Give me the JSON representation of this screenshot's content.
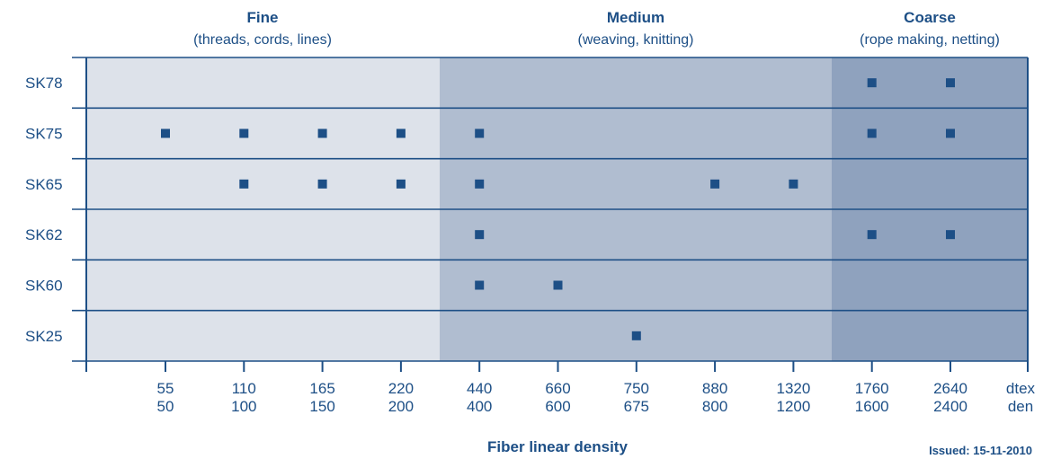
{
  "chart_data": {
    "type": "scatter",
    "xlabel": "Fiber linear density",
    "note": "Issued: 15-11-2010",
    "bands": [
      {
        "title": "Fine",
        "subtitle": "(threads, cords, lines)",
        "color": "#dde2ea",
        "range": [
          0,
          4.5
        ]
      },
      {
        "title": "Medium",
        "subtitle": "(weaving, knitting)",
        "color": "#b0bdd0",
        "range": [
          4.5,
          9.5
        ]
      },
      {
        "title": "Coarse",
        "subtitle": "(rope making, netting)",
        "color": "#8fa2be",
        "range": [
          9.5,
          12.5
        ]
      }
    ],
    "rows": [
      "SK78",
      "SK75",
      "SK65",
      "SK62",
      "SK60",
      "SK25"
    ],
    "x_ticks": [
      {
        "dtex": "55",
        "den": "50"
      },
      {
        "dtex": "110",
        "den": "100"
      },
      {
        "dtex": "165",
        "den": "150"
      },
      {
        "dtex": "220",
        "den": "200"
      },
      {
        "dtex": "440",
        "den": "400"
      },
      {
        "dtex": "660",
        "den": "600"
      },
      {
        "dtex": "750",
        "den": "675"
      },
      {
        "dtex": "880",
        "den": "800"
      },
      {
        "dtex": "1320",
        "den": "1200"
      },
      {
        "dtex": "1760",
        "den": "1600"
      },
      {
        "dtex": "2640",
        "den": "2400"
      }
    ],
    "unit_labels": {
      "dtex": "dtex",
      "den": "den"
    },
    "points": [
      {
        "row": "SK78",
        "dtex": [
          1760,
          2640
        ]
      },
      {
        "row": "SK75",
        "dtex": [
          55,
          110,
          165,
          220,
          440,
          1760,
          2640
        ]
      },
      {
        "row": "SK65",
        "dtex": [
          110,
          165,
          220,
          440,
          880,
          1320
        ]
      },
      {
        "row": "SK62",
        "dtex": [
          440,
          1760,
          2640
        ]
      },
      {
        "row": "SK60",
        "dtex": [
          440,
          660
        ]
      },
      {
        "row": "SK25",
        "dtex": [
          750
        ]
      }
    ],
    "marker_color": "#1d4f86",
    "axis_color": "#1d4f86"
  }
}
